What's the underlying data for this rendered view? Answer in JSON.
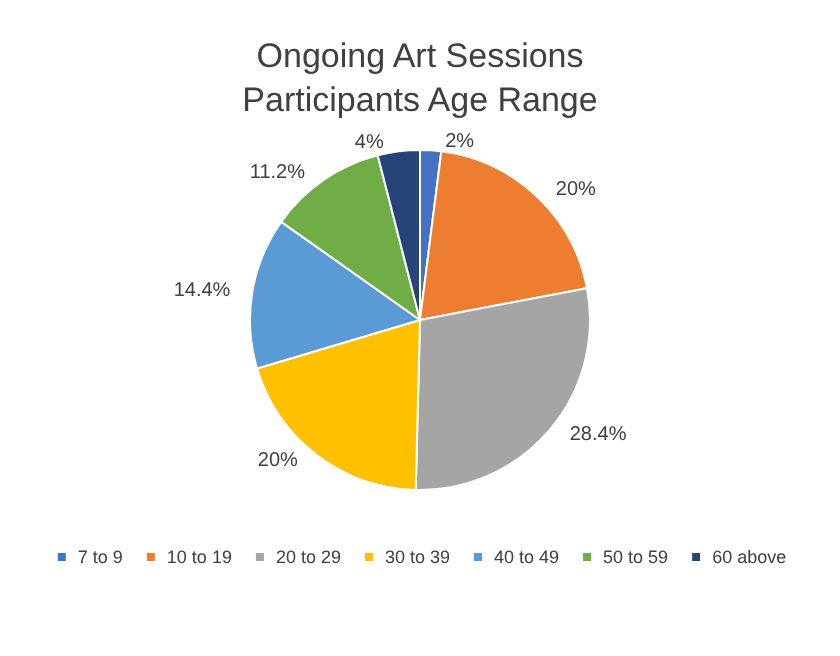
{
  "chart_data": {
    "type": "pie",
    "title": "Ongoing Art Sessions\nParticipants Age Range",
    "categories": [
      "7 to 9",
      "10 to 19",
      "20 to 29",
      "30 to 39",
      "40 to 49",
      "50 to 59",
      "60 above"
    ],
    "values": [
      2,
      20,
      28.4,
      20,
      14.4,
      11.2,
      4
    ],
    "value_labels": [
      "2%",
      "20%",
      "28.4%",
      "20%",
      "14.4%",
      "11.2%",
      "4%"
    ],
    "colors": [
      "#4472c4",
      "#ed7d31",
      "#a5a5a5",
      "#ffc000",
      "#5b9bd5",
      "#70ad47",
      "#264478"
    ],
    "legend": "bottom"
  }
}
